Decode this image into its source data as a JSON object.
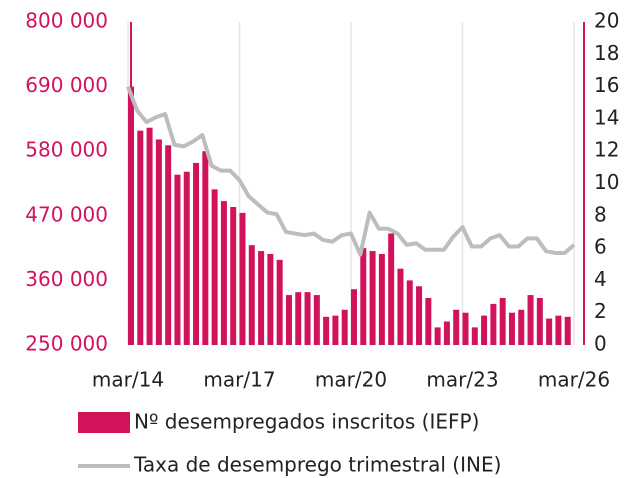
{
  "chart_data": {
    "type": "bar_line",
    "categories": [
      "mar/14",
      null,
      null,
      null,
      null,
      null,
      null,
      null,
      null,
      null,
      null,
      null,
      "mar/17",
      null,
      null,
      null,
      null,
      null,
      null,
      null,
      null,
      null,
      null,
      null,
      "mar/20",
      null,
      null,
      null,
      null,
      null,
      null,
      null,
      null,
      null,
      null,
      null,
      "mar/23",
      null,
      null,
      null,
      null,
      null,
      null,
      null,
      null,
      null,
      null,
      null,
      "mar/26"
    ],
    "series": [
      {
        "name": "Nº desempregados inscritos (IEFP)",
        "color": "#d1135c",
        "type": "bar",
        "values": [
          690000,
          615000,
          620000,
          600000,
          590000,
          540000,
          545000,
          560000,
          580000,
          515000,
          495000,
          485000,
          475000,
          420000,
          410000,
          405000,
          395000,
          335000,
          340000,
          340000,
          335000,
          298000,
          300000,
          310000,
          345000,
          415000,
          410000,
          405000,
          440000,
          380000,
          360000,
          350000,
          330000,
          280000,
          290000,
          310000,
          305000,
          280000,
          300000,
          320000,
          330000,
          305000,
          310000,
          335000,
          330000,
          295000,
          300000,
          298000,
          null
        ]
      },
      {
        "name": "Taxa de desemprego trimestral (INE)",
        "color": "#bdbdbd",
        "type": "line",
        "axis": "y2",
        "values": [
          16,
          14.5,
          13.8,
          14.1,
          14.3,
          12.4,
          12.3,
          12.6,
          13.0,
          11.1,
          10.8,
          10.8,
          10.2,
          9.2,
          8.7,
          8.2,
          8.1,
          7.0,
          6.9,
          6.8,
          6.9,
          6.5,
          6.4,
          6.8,
          6.9,
          5.6,
          8.2,
          7.2,
          7.2,
          6.9,
          6.2,
          6.3,
          5.9,
          5.9,
          5.9,
          6.7,
          7.3,
          6.1,
          6.1,
          6.6,
          6.8,
          6.1,
          6.1,
          6.6,
          6.6,
          5.8,
          5.7,
          5.7,
          6.2
        ]
      }
    ],
    "ylim": [
      250000,
      800000
    ],
    "yticks": [
      {
        "value": 250000,
        "label": "250 000"
      },
      {
        "value": 360000,
        "label": "360 000"
      },
      {
        "value": 470000,
        "label": "470 000"
      },
      {
        "value": 580000,
        "label": "580 000"
      },
      {
        "value": 690000,
        "label": "690 000"
      },
      {
        "value": 800000,
        "label": "800 000"
      }
    ],
    "y2lim": [
      0,
      20
    ],
    "y2ticks": [
      0,
      2,
      4,
      6,
      8,
      10,
      12,
      14,
      16,
      18,
      20
    ],
    "grid": true
  }
}
